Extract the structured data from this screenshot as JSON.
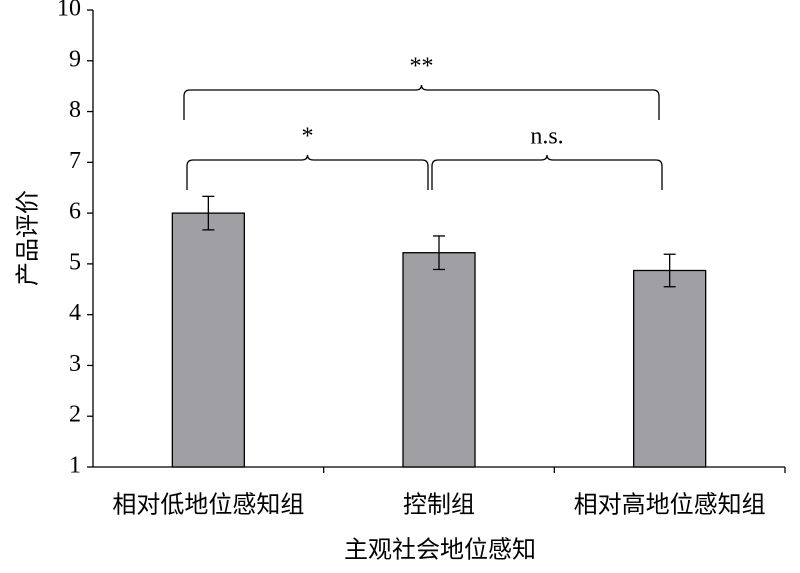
{
  "chart_data": {
    "type": "bar",
    "xlabel": "主观社会地位感知",
    "ylabel": "产品评价",
    "categories": [
      "相对低地位感知组",
      "控制组",
      "相对高地位感知组"
    ],
    "values": [
      6.0,
      5.22,
      4.87
    ],
    "errors": [
      0.33,
      0.33,
      0.32
    ],
    "color": "#a0a0a4",
    "ylim": [
      1,
      10
    ],
    "yticks": [
      1,
      2,
      3,
      4,
      5,
      6,
      7,
      8,
      9,
      10
    ],
    "annotations": [
      "**",
      "*",
      "n.s."
    ]
  }
}
